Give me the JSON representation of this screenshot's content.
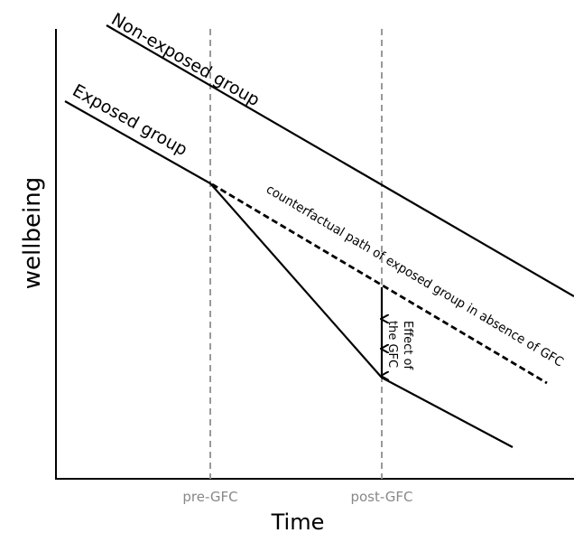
{
  "axes": {
    "x_label": "Time",
    "y_label": "wellbeing",
    "x_ticks": [
      "pre-GFC",
      "post-GFC"
    ]
  },
  "lines": {
    "non_exposed": "Non-exposed group",
    "exposed": "Exposed group",
    "counterfactual": "counterfactual path of exposed group in absence of GFC"
  },
  "effect": {
    "line1": "Effect of",
    "line2": "the GFC"
  }
}
